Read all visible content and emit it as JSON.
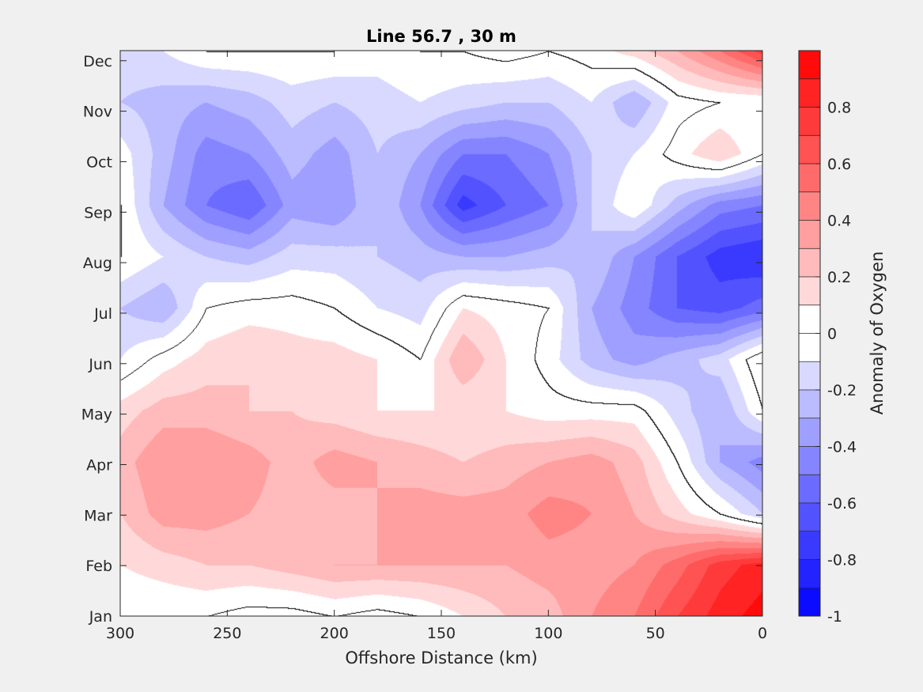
{
  "chart_data": {
    "type": "heatmap",
    "subtype": "filled-contour",
    "title": "Line 56.7 , 30 m",
    "xlabel": "Offshore Distance (km)",
    "ylabel": "",
    "x_axis": {
      "range": [
        300,
        0
      ],
      "reversed": true,
      "ticks": [
        300,
        250,
        200,
        150,
        100,
        50,
        0
      ],
      "tick_labels": [
        "300",
        "250",
        "200",
        "150",
        "100",
        "50",
        "0"
      ]
    },
    "y_axis": {
      "ticks": [
        "Jan",
        "Feb",
        "Mar",
        "Apr",
        "May",
        "Jun",
        "Jul",
        "Aug",
        "Sep",
        "Oct",
        "Nov",
        "Dec"
      ],
      "tick_labels": [
        "Jan",
        "Feb",
        "Mar",
        "Apr",
        "May",
        "Jun",
        "Jul",
        "Aug",
        "Sep",
        "Oct",
        "Nov",
        "Dec"
      ]
    },
    "colorbar": {
      "label": "Anomaly of Oxygen",
      "range": [
        -1,
        1
      ],
      "step": 0.1,
      "ticks": [
        -1,
        -0.8,
        -0.6,
        -0.4,
        -0.2,
        0,
        0.2,
        0.4,
        0.6,
        0.8
      ],
      "tick_labels": [
        "-1",
        "-0.8",
        "-0.6",
        "-0.4",
        "-0.2",
        "0",
        "0.2",
        "0.4",
        "0.6",
        "0.8"
      ],
      "colormap": "blue-white-red",
      "negative_color": "#0000ff",
      "zero_color": "#ffffff",
      "positive_color": "#ff0000"
    },
    "zero_contour_color": "#000000",
    "grid": false,
    "field_samples": {
      "x_km": [
        300,
        280,
        260,
        240,
        220,
        200,
        180,
        160,
        140,
        120,
        100,
        80,
        60,
        40,
        20,
        0
      ],
      "months": [
        "Jan",
        "Feb",
        "Mar",
        "Apr",
        "May",
        "Jun",
        "Jul",
        "Aug",
        "Sep",
        "Oct",
        "Nov",
        "Dec"
      ],
      "values": [
        [
          0.0,
          0.0,
          0.0,
          -0.05,
          -0.05,
          0.0,
          -0.05,
          0.0,
          0.1,
          0.2,
          0.25,
          0.4,
          0.5,
          0.7,
          0.85,
          0.95
        ],
        [
          0.1,
          0.15,
          0.2,
          0.2,
          0.25,
          0.3,
          0.3,
          0.3,
          0.3,
          0.3,
          0.35,
          0.35,
          0.4,
          0.55,
          0.75,
          0.85
        ],
        [
          0.2,
          0.35,
          0.35,
          0.3,
          0.25,
          0.25,
          0.3,
          0.35,
          0.35,
          0.35,
          0.45,
          0.4,
          0.3,
          0.15,
          0.0,
          -0.2
        ],
        [
          0.25,
          0.4,
          0.4,
          0.35,
          0.25,
          0.35,
          0.3,
          0.25,
          0.2,
          0.25,
          0.3,
          0.35,
          0.25,
          0.0,
          -0.3,
          -0.45
        ],
        [
          0.15,
          0.25,
          0.25,
          0.2,
          0.2,
          0.15,
          0.1,
          0.1,
          0.1,
          0.1,
          0.05,
          0.05,
          0.05,
          -0.15,
          -0.3,
          0.0
        ],
        [
          -0.1,
          0.05,
          0.15,
          0.2,
          0.15,
          0.15,
          0.1,
          0.0,
          0.3,
          0.1,
          -0.05,
          -0.25,
          -0.35,
          -0.25,
          -0.15,
          0.1
        ],
        [
          -0.2,
          -0.3,
          0.0,
          0.05,
          0.05,
          0.0,
          -0.1,
          -0.15,
          0.1,
          0.05,
          0.0,
          -0.3,
          -0.45,
          -0.6,
          -0.65,
          -0.55
        ],
        [
          0.0,
          -0.1,
          -0.2,
          -0.25,
          -0.15,
          -0.15,
          -0.2,
          -0.25,
          -0.3,
          -0.3,
          -0.25,
          -0.2,
          -0.4,
          -0.6,
          -0.75,
          -0.8
        ],
        [
          0.0,
          -0.3,
          -0.5,
          -0.6,
          -0.35,
          -0.4,
          -0.2,
          -0.4,
          -0.75,
          -0.6,
          -0.5,
          -0.2,
          0.0,
          -0.25,
          -0.45,
          -0.5
        ],
        [
          -0.05,
          -0.25,
          -0.45,
          -0.4,
          -0.25,
          -0.35,
          -0.2,
          -0.3,
          -0.5,
          -0.5,
          -0.4,
          -0.2,
          -0.1,
          0.05,
          0.2,
          0.0
        ],
        [
          -0.2,
          -0.25,
          -0.3,
          -0.25,
          -0.15,
          -0.2,
          -0.15,
          -0.1,
          -0.15,
          -0.2,
          -0.2,
          -0.1,
          -0.3,
          -0.05,
          0.0,
          0.0
        ],
        [
          -0.15,
          -0.1,
          0.0,
          0.0,
          0.0,
          0.0,
          -0.05,
          0.0,
          0.0,
          0.05,
          0.0,
          0.05,
          0.15,
          0.3,
          0.5,
          0.75
        ]
      ]
    }
  }
}
